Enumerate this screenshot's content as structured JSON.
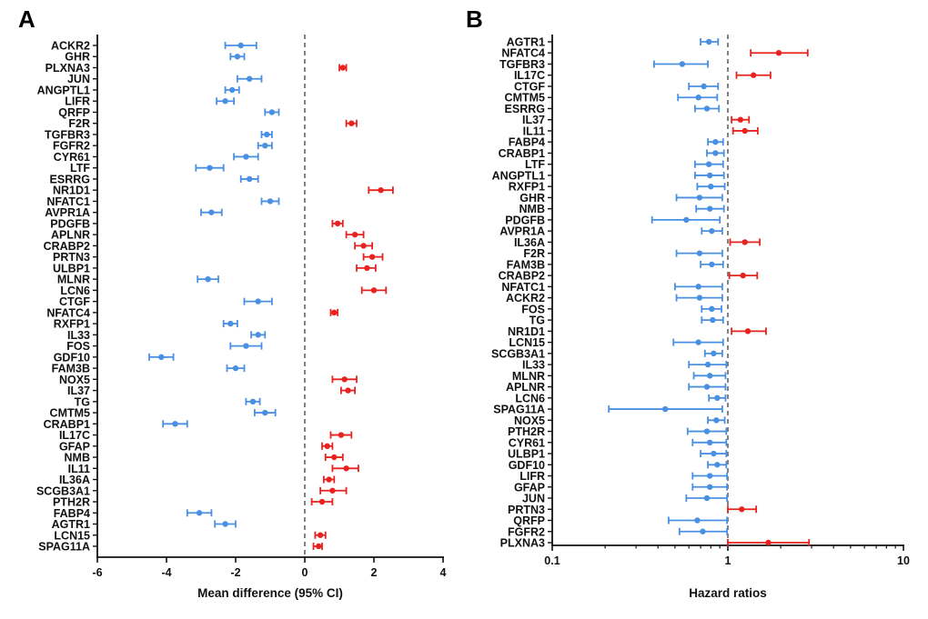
{
  "colors": {
    "low": "#4a90e2",
    "high": "#e8231f",
    "axis": "#111111",
    "ref": "#666666"
  },
  "chart_data": [
    {
      "panel_label": "A",
      "type": "forest",
      "xlabel": "Mean difference (95% CI)",
      "xscale": "linear",
      "xlim": [
        -6,
        4
      ],
      "ticks": [
        -6,
        -4,
        -2,
        0,
        2,
        4
      ],
      "tick_labels": [
        "-6",
        "-4",
        "-2",
        "0",
        "2",
        "4"
      ],
      "reference": 0,
      "rows": [
        {
          "gene": "ACKR2",
          "est": -1.85,
          "lo": -2.3,
          "hi": -1.4,
          "dir": "low"
        },
        {
          "gene": "GHR",
          "est": -1.95,
          "lo": -2.15,
          "hi": -1.75,
          "dir": "low"
        },
        {
          "gene": "PLXNA3",
          "est": 1.1,
          "lo": 1.0,
          "hi": 1.2,
          "dir": "high"
        },
        {
          "gene": "JUN",
          "est": -1.6,
          "lo": -1.95,
          "hi": -1.25,
          "dir": "low"
        },
        {
          "gene": "ANGPTL1",
          "est": -2.1,
          "lo": -2.3,
          "hi": -1.9,
          "dir": "low"
        },
        {
          "gene": "LIFR",
          "est": -2.3,
          "lo": -2.55,
          "hi": -2.05,
          "dir": "low"
        },
        {
          "gene": "QRFP",
          "est": -0.95,
          "lo": -1.15,
          "hi": -0.75,
          "dir": "low"
        },
        {
          "gene": "F2R",
          "est": 1.35,
          "lo": 1.2,
          "hi": 1.5,
          "dir": "high"
        },
        {
          "gene": "TGFBR3",
          "est": -1.1,
          "lo": -1.25,
          "hi": -0.95,
          "dir": "low"
        },
        {
          "gene": "FGFR2",
          "est": -1.15,
          "lo": -1.35,
          "hi": -0.95,
          "dir": "low"
        },
        {
          "gene": "CYR61",
          "est": -1.7,
          "lo": -2.05,
          "hi": -1.35,
          "dir": "low"
        },
        {
          "gene": "LTF",
          "est": -2.75,
          "lo": -3.15,
          "hi": -2.35,
          "dir": "low"
        },
        {
          "gene": "ESRRG",
          "est": -1.6,
          "lo": -1.85,
          "hi": -1.35,
          "dir": "low"
        },
        {
          "gene": "NR1D1",
          "est": 2.2,
          "lo": 1.85,
          "hi": 2.55,
          "dir": "high"
        },
        {
          "gene": "NFATC1",
          "est": -1.0,
          "lo": -1.25,
          "hi": -0.75,
          "dir": "low"
        },
        {
          "gene": "AVPR1A",
          "est": -2.7,
          "lo": -3.0,
          "hi": -2.4,
          "dir": "low"
        },
        {
          "gene": "PDGFB",
          "est": 0.95,
          "lo": 0.8,
          "hi": 1.1,
          "dir": "high"
        },
        {
          "gene": "APLNR",
          "est": 1.45,
          "lo": 1.2,
          "hi": 1.7,
          "dir": "high"
        },
        {
          "gene": "CRABP2",
          "est": 1.7,
          "lo": 1.45,
          "hi": 1.95,
          "dir": "high"
        },
        {
          "gene": "PRTN3",
          "est": 1.95,
          "lo": 1.7,
          "hi": 2.25,
          "dir": "high"
        },
        {
          "gene": "ULBP1",
          "est": 1.8,
          "lo": 1.5,
          "hi": 2.05,
          "dir": "high"
        },
        {
          "gene": "MLNR",
          "est": -2.8,
          "lo": -3.1,
          "hi": -2.5,
          "dir": "low"
        },
        {
          "gene": "LCN6",
          "est": 2.0,
          "lo": 1.65,
          "hi": 2.35,
          "dir": "high"
        },
        {
          "gene": "CTGF",
          "est": -1.35,
          "lo": -1.75,
          "hi": -0.95,
          "dir": "low"
        },
        {
          "gene": "NFATC4",
          "est": 0.85,
          "lo": 0.75,
          "hi": 0.95,
          "dir": "high"
        },
        {
          "gene": "RXFP1",
          "est": -2.15,
          "lo": -2.35,
          "hi": -1.95,
          "dir": "low"
        },
        {
          "gene": "IL33",
          "est": -1.35,
          "lo": -1.55,
          "hi": -1.15,
          "dir": "low"
        },
        {
          "gene": "FOS",
          "est": -1.7,
          "lo": -2.15,
          "hi": -1.25,
          "dir": "low"
        },
        {
          "gene": "GDF10",
          "est": -4.15,
          "lo": -4.5,
          "hi": -3.8,
          "dir": "low"
        },
        {
          "gene": "FAM3B",
          "est": -2.0,
          "lo": -2.25,
          "hi": -1.75,
          "dir": "low"
        },
        {
          "gene": "NOX5",
          "est": 1.15,
          "lo": 0.8,
          "hi": 1.5,
          "dir": "high"
        },
        {
          "gene": "IL37",
          "est": 1.25,
          "lo": 1.05,
          "hi": 1.45,
          "dir": "high"
        },
        {
          "gene": "TG",
          "est": -1.5,
          "lo": -1.7,
          "hi": -1.3,
          "dir": "low"
        },
        {
          "gene": "CMTM5",
          "est": -1.15,
          "lo": -1.45,
          "hi": -0.85,
          "dir": "low"
        },
        {
          "gene": "CRABP1",
          "est": -3.75,
          "lo": -4.1,
          "hi": -3.4,
          "dir": "low"
        },
        {
          "gene": "IL17C",
          "est": 1.05,
          "lo": 0.75,
          "hi": 1.35,
          "dir": "high"
        },
        {
          "gene": "GFAP",
          "est": 0.65,
          "lo": 0.5,
          "hi": 0.8,
          "dir": "high"
        },
        {
          "gene": "NMB",
          "est": 0.85,
          "lo": 0.6,
          "hi": 1.1,
          "dir": "high"
        },
        {
          "gene": "IL11",
          "est": 1.2,
          "lo": 0.8,
          "hi": 1.55,
          "dir": "high"
        },
        {
          "gene": "IL36A",
          "est": 0.7,
          "lo": 0.55,
          "hi": 0.85,
          "dir": "high"
        },
        {
          "gene": "SCGB3A1",
          "est": 0.8,
          "lo": 0.45,
          "hi": 1.2,
          "dir": "high"
        },
        {
          "gene": "PTH2R",
          "est": 0.5,
          "lo": 0.2,
          "hi": 0.8,
          "dir": "high"
        },
        {
          "gene": "FABP4",
          "est": -3.05,
          "lo": -3.4,
          "hi": -2.7,
          "dir": "low"
        },
        {
          "gene": "AGTR1",
          "est": -2.3,
          "lo": -2.6,
          "hi": -2.0,
          "dir": "low"
        },
        {
          "gene": "LCN15",
          "est": 0.45,
          "lo": 0.3,
          "hi": 0.6,
          "dir": "high"
        },
        {
          "gene": "SPAG11A",
          "est": 0.4,
          "lo": 0.25,
          "hi": 0.5,
          "dir": "high"
        }
      ]
    },
    {
      "panel_label": "B",
      "type": "forest",
      "xlabel": "Hazard ratios",
      "xscale": "log",
      "xlim": [
        0.1,
        10
      ],
      "ticks": [
        0.1,
        1,
        10
      ],
      "tick_labels": [
        "0.1",
        "1",
        "10"
      ],
      "reference": 1,
      "rows": [
        {
          "gene": "AGTR1",
          "est": 0.78,
          "lo": 0.7,
          "hi": 0.88,
          "dir": "low"
        },
        {
          "gene": "NFATC4",
          "est": 1.95,
          "lo": 1.35,
          "hi": 2.85,
          "dir": "high"
        },
        {
          "gene": "TGFBR3",
          "est": 0.55,
          "lo": 0.38,
          "hi": 0.77,
          "dir": "low"
        },
        {
          "gene": "IL17C",
          "est": 1.4,
          "lo": 1.12,
          "hi": 1.75,
          "dir": "high"
        },
        {
          "gene": "CTGF",
          "est": 0.73,
          "lo": 0.6,
          "hi": 0.88,
          "dir": "low"
        },
        {
          "gene": "CMTM5",
          "est": 0.68,
          "lo": 0.52,
          "hi": 0.87,
          "dir": "low"
        },
        {
          "gene": "ESRRG",
          "est": 0.76,
          "lo": 0.65,
          "hi": 0.89,
          "dir": "low"
        },
        {
          "gene": "IL37",
          "est": 1.18,
          "lo": 1.05,
          "hi": 1.32,
          "dir": "high"
        },
        {
          "gene": "IL11",
          "est": 1.25,
          "lo": 1.07,
          "hi": 1.48,
          "dir": "high"
        },
        {
          "gene": "FABP4",
          "est": 0.85,
          "lo": 0.77,
          "hi": 0.94,
          "dir": "low"
        },
        {
          "gene": "CRABP1",
          "est": 0.85,
          "lo": 0.76,
          "hi": 0.95,
          "dir": "low"
        },
        {
          "gene": "LTF",
          "est": 0.78,
          "lo": 0.65,
          "hi": 0.94,
          "dir": "low"
        },
        {
          "gene": "ANGPTL1",
          "est": 0.79,
          "lo": 0.65,
          "hi": 0.95,
          "dir": "low"
        },
        {
          "gene": "RXFP1",
          "est": 0.8,
          "lo": 0.67,
          "hi": 0.96,
          "dir": "low"
        },
        {
          "gene": "GHR",
          "est": 0.69,
          "lo": 0.51,
          "hi": 0.93,
          "dir": "low"
        },
        {
          "gene": "NMB",
          "est": 0.79,
          "lo": 0.66,
          "hi": 0.95,
          "dir": "low"
        },
        {
          "gene": "PDGFB",
          "est": 0.58,
          "lo": 0.37,
          "hi": 0.9,
          "dir": "low"
        },
        {
          "gene": "AVPR1A",
          "est": 0.81,
          "lo": 0.71,
          "hi": 0.93,
          "dir": "low"
        },
        {
          "gene": "IL36A",
          "est": 1.25,
          "lo": 1.03,
          "hi": 1.52,
          "dir": "high"
        },
        {
          "gene": "F2R",
          "est": 0.69,
          "lo": 0.51,
          "hi": 0.93,
          "dir": "low"
        },
        {
          "gene": "FAM3B",
          "est": 0.81,
          "lo": 0.7,
          "hi": 0.94,
          "dir": "low"
        },
        {
          "gene": "CRABP2",
          "est": 1.22,
          "lo": 1.02,
          "hi": 1.47,
          "dir": "high"
        },
        {
          "gene": "NFATC1",
          "est": 0.68,
          "lo": 0.5,
          "hi": 0.93,
          "dir": "low"
        },
        {
          "gene": "ACKR2",
          "est": 0.69,
          "lo": 0.51,
          "hi": 0.93,
          "dir": "low"
        },
        {
          "gene": "FOS",
          "est": 0.81,
          "lo": 0.71,
          "hi": 0.92,
          "dir": "low"
        },
        {
          "gene": "TG",
          "est": 0.82,
          "lo": 0.71,
          "hi": 0.94,
          "dir": "low"
        },
        {
          "gene": "NR1D1",
          "est": 1.3,
          "lo": 1.05,
          "hi": 1.65,
          "dir": "high"
        },
        {
          "gene": "LCN15",
          "est": 0.68,
          "lo": 0.49,
          "hi": 0.94,
          "dir": "low"
        },
        {
          "gene": "SCGB3A1",
          "est": 0.83,
          "lo": 0.74,
          "hi": 0.93,
          "dir": "low"
        },
        {
          "gene": "IL33",
          "est": 0.77,
          "lo": 0.6,
          "hi": 0.98,
          "dir": "low"
        },
        {
          "gene": "MLNR",
          "est": 0.79,
          "lo": 0.64,
          "hi": 0.97,
          "dir": "low"
        },
        {
          "gene": "APLNR",
          "est": 0.76,
          "lo": 0.6,
          "hi": 0.97,
          "dir": "low"
        },
        {
          "gene": "LCN6",
          "est": 0.87,
          "lo": 0.78,
          "hi": 0.97,
          "dir": "low"
        },
        {
          "gene": "SPAG11A",
          "est": 0.44,
          "lo": 0.21,
          "hi": 0.93,
          "dir": "low"
        },
        {
          "gene": "NOX5",
          "est": 0.86,
          "lo": 0.77,
          "hi": 0.96,
          "dir": "low"
        },
        {
          "gene": "PTH2R",
          "est": 0.76,
          "lo": 0.59,
          "hi": 0.98,
          "dir": "low"
        },
        {
          "gene": "CYR61",
          "est": 0.79,
          "lo": 0.63,
          "hi": 0.98,
          "dir": "low"
        },
        {
          "gene": "ULBP1",
          "est": 0.83,
          "lo": 0.7,
          "hi": 0.98,
          "dir": "low"
        },
        {
          "gene": "GDF10",
          "est": 0.87,
          "lo": 0.77,
          "hi": 0.98,
          "dir": "low"
        },
        {
          "gene": "LIFR",
          "est": 0.79,
          "lo": 0.63,
          "hi": 0.99,
          "dir": "low"
        },
        {
          "gene": "GFAP",
          "est": 0.79,
          "lo": 0.63,
          "hi": 0.99,
          "dir": "low"
        },
        {
          "gene": "JUN",
          "est": 0.76,
          "lo": 0.58,
          "hi": 0.99,
          "dir": "low"
        },
        {
          "gene": "PRTN3",
          "est": 1.2,
          "lo": 1.0,
          "hi": 1.45,
          "dir": "high"
        },
        {
          "gene": "QRFP",
          "est": 0.67,
          "lo": 0.46,
          "hi": 0.99,
          "dir": "low"
        },
        {
          "gene": "FGFR2",
          "est": 0.72,
          "lo": 0.53,
          "hi": 0.99,
          "dir": "low"
        },
        {
          "gene": "PLXNA3",
          "est": 1.7,
          "lo": 1.0,
          "hi": 2.9,
          "dir": "high"
        }
      ]
    }
  ]
}
